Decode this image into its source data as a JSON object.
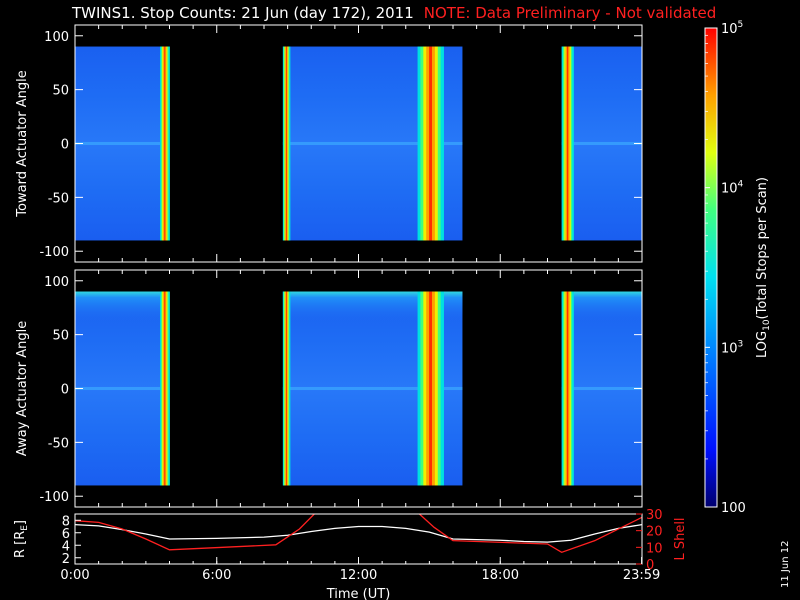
{
  "title": "TWINS1. Stop Counts: 21 Jun (day 172), 2011",
  "note": "NOTE: Data Preliminary - Not validated",
  "stamp": "11 Jun 12",
  "colorbar": {
    "label": "LOG10(Total Stops per Scan)",
    "label_base": "LOG",
    "label_sub": "10",
    "label_rest": "(Total Stops per Scan)",
    "ticks": [
      {
        "value": 100,
        "text": "100"
      },
      {
        "value": 1000,
        "text": "10",
        "exp": "3"
      },
      {
        "value": 10000,
        "text": "10",
        "exp": "4"
      },
      {
        "value": 100000,
        "text": "10",
        "exp": "5"
      }
    ],
    "range": [
      100,
      100000
    ],
    "scale": "log"
  },
  "chart_data": [
    {
      "type": "heatmap",
      "ylabel": "Toward Actuator Angle",
      "ylim": [
        -110,
        110
      ],
      "yticks": [
        100,
        50,
        0,
        -50,
        -100
      ],
      "xlim": [
        0,
        24
      ],
      "data_y_range": [
        -90,
        90
      ],
      "coverage_hours": [
        [
          0,
          4.0
        ],
        [
          8.8,
          16.4
        ],
        [
          20.6,
          23.983
        ]
      ],
      "bright_bands_hours": [
        [
          3.6,
          4.0
        ],
        [
          8.8,
          9.1
        ],
        [
          14.5,
          15.6
        ],
        [
          20.6,
          21.1
        ]
      ],
      "background_level": 800,
      "band_level": 60000
    },
    {
      "type": "heatmap",
      "ylabel": "Away Actuator Angle",
      "ylim": [
        -110,
        110
      ],
      "yticks": [
        100,
        50,
        0,
        -50,
        -100
      ],
      "xlim": [
        0,
        24
      ],
      "data_y_range": [
        -90,
        90
      ],
      "coverage_hours": [
        [
          0,
          4.0
        ],
        [
          8.8,
          16.4
        ],
        [
          20.6,
          23.983
        ]
      ],
      "bright_bands_hours": [
        [
          3.6,
          4.0
        ],
        [
          8.8,
          9.1
        ],
        [
          14.5,
          15.6
        ],
        [
          20.6,
          21.1
        ]
      ],
      "background_level": 800,
      "band_level": 60000
    },
    {
      "type": "line",
      "ylabel_left": "R [RE]",
      "ylabel_left_base": "R [R",
      "ylabel_left_sub": "E",
      "ylabel_left_close": "]",
      "ylabel_right": "L Shell",
      "ylim_left": [
        1,
        9
      ],
      "yticks_left": [
        2,
        4,
        6,
        8
      ],
      "ylim_right": [
        0,
        30
      ],
      "yticks_right": [
        0,
        10,
        20,
        30
      ],
      "xlabel": "Time (UT)",
      "xticks": [
        {
          "value": 0,
          "text": "0:00"
        },
        {
          "value": 6,
          "text": "6:00"
        },
        {
          "value": 12,
          "text": "12:00"
        },
        {
          "value": 18,
          "text": "18:00"
        },
        {
          "value": 23.983,
          "text": "23:59"
        }
      ],
      "series": [
        {
          "name": "R",
          "color": "#ffffff",
          "axis": "left",
          "x": [
            0,
            1,
            2,
            3,
            4,
            6,
            8,
            9,
            10,
            11,
            12,
            13,
            14,
            15,
            16,
            17,
            18,
            19,
            20,
            21,
            22,
            23,
            24
          ],
          "y": [
            7.3,
            7.1,
            6.5,
            5.8,
            5.0,
            5.1,
            5.3,
            5.6,
            6.2,
            6.7,
            7.0,
            7.0,
            6.7,
            6.1,
            5.0,
            4.9,
            4.8,
            4.6,
            4.5,
            4.8,
            5.8,
            6.7,
            7.3
          ]
        },
        {
          "name": "L Shell",
          "color": "#ff2020",
          "axis": "right",
          "x": [
            0,
            1,
            2,
            3,
            4,
            8.5,
            9.5,
            10.2,
            14.5,
            15.2,
            16,
            20,
            20.6,
            22,
            24
          ],
          "y": [
            26,
            25,
            21,
            15,
            8.5,
            11.5,
            21,
            31,
            31,
            22,
            14,
            12,
            7,
            14,
            28
          ]
        }
      ]
    }
  ]
}
